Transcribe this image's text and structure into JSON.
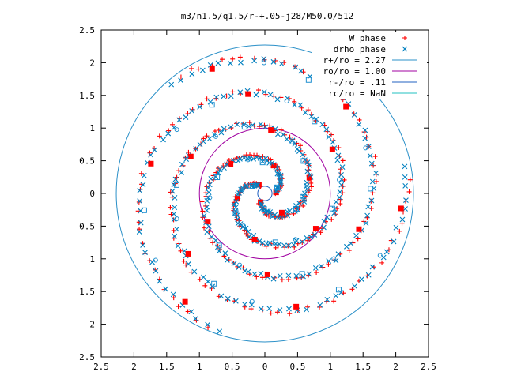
{
  "chart_data": {
    "type": "scatter",
    "title": "m3/n1.5/q1.5/r-+.05-j28/M50.0/512",
    "xlabel": "",
    "ylabel": "",
    "xlim": [
      -2.5,
      2.5
    ],
    "ylim": [
      -2.5,
      2.5
    ],
    "x_tick_labels": [
      "2.5",
      "2",
      "1.5",
      "1",
      "0.5",
      "0",
      "0.5",
      "1",
      "1.5",
      "2",
      "2.5"
    ],
    "y_tick_labels": [
      "2.5",
      "2",
      "1.5",
      "1",
      "0.5",
      "0",
      "0.5",
      "1",
      "1.5",
      "2",
      "2.5"
    ],
    "grid": false,
    "legend_position": "top-right",
    "point_series": [
      {
        "name": "W phase",
        "marker": "plus",
        "color": "#ff0000",
        "arm_phase_offsets_deg": [
          0,
          120,
          240
        ]
      },
      {
        "name": "drho phase",
        "marker": "cross",
        "color": "#0080c0",
        "arm_phase_offsets_deg": [
          5,
          125,
          245
        ]
      }
    ],
    "circles": [
      {
        "name": "r+/ro = 2.27",
        "r": 2.27,
        "color": "#2b90c8"
      },
      {
        "name": "ro/ro = 1.00",
        "r": 1.0,
        "color": "#a000a0"
      },
      {
        "name": "r-/ro = .11",
        "r": 0.11,
        "color": "#2060c0"
      },
      {
        "name": "rc/ro = NaN",
        "r": null,
        "color": "#20c0c0"
      }
    ],
    "extra_markers": [
      {
        "marker": "filled-square",
        "color": "#ff0000"
      },
      {
        "marker": "open-square",
        "color": "#2090d0"
      },
      {
        "marker": "open-circle",
        "color": "#2090d0"
      }
    ],
    "spiral": {
      "arms": 3,
      "r_min": 0.15,
      "r_max": 2.2,
      "turns": 1.35
    }
  }
}
